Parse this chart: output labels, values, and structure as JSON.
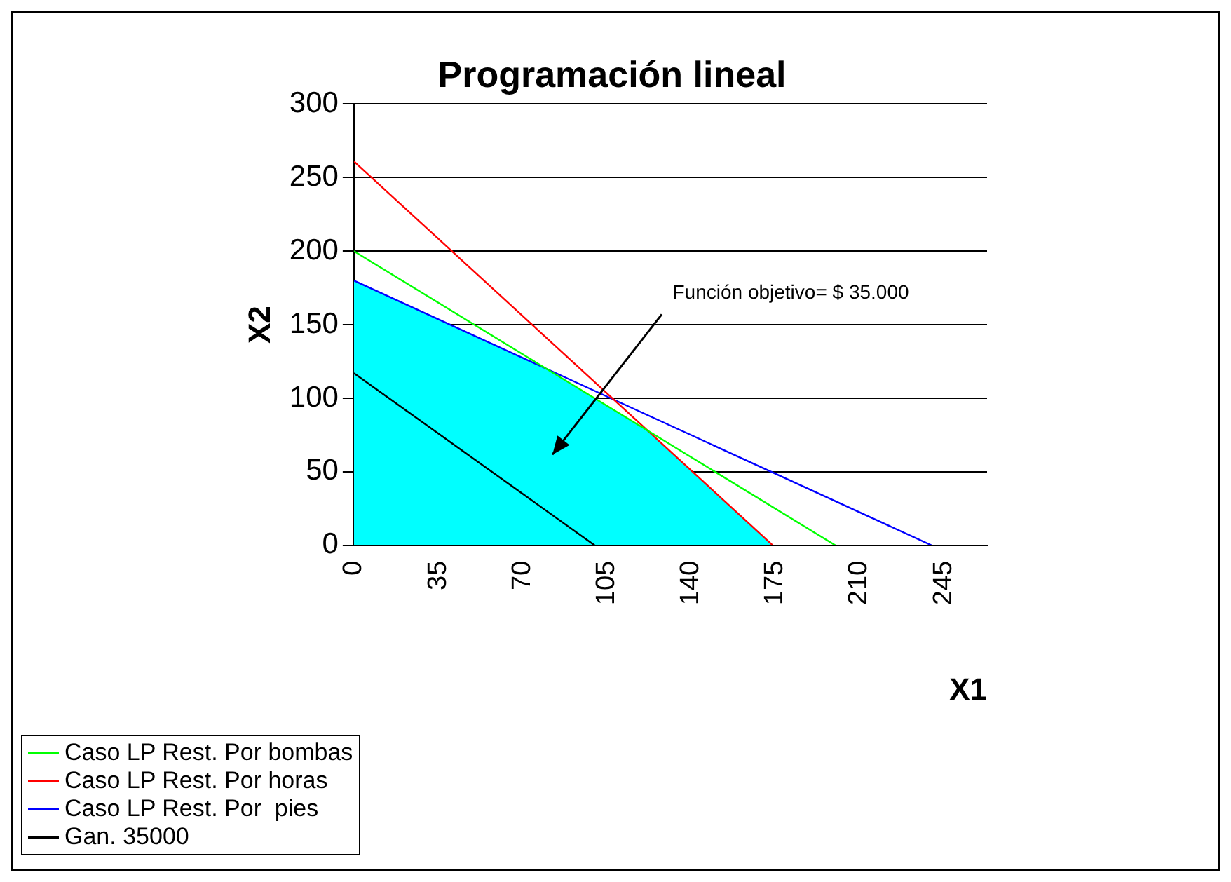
{
  "chart_data": {
    "type": "line",
    "title": "Programación lineal",
    "xlabel": "X1",
    "ylabel": "X2",
    "xlim": [
      0,
      263
    ],
    "xticks": [
      0,
      35,
      70,
      105,
      140,
      175,
      210,
      245
    ],
    "ylim": [
      0,
      300
    ],
    "yticks": [
      0,
      50,
      100,
      150,
      200,
      250,
      300
    ],
    "grid": "y",
    "legend": "bottom left",
    "series": [
      {
        "type": "area",
        "color": "#00ffff",
        "x": [
          0,
          0,
          80,
          122,
          174
        ],
        "values": [
          0,
          180,
          120,
          78,
          0
        ]
      },
      {
        "name": "Caso LP Rest. Por bombas",
        "color": "#00ff00",
        "x": [
          0,
          200
        ],
        "values": [
          200,
          0
        ]
      },
      {
        "name": "Caso LP Rest. Por horas",
        "color": "#ff0000",
        "x": [
          0,
          174
        ],
        "values": [
          261,
          0
        ]
      },
      {
        "name": "Caso LP Rest. Por  pies",
        "color": "#0000ff",
        "x": [
          0,
          240
        ],
        "values": [
          180,
          0
        ]
      },
      {
        "name": "Gan. 35000",
        "color": "#000000",
        "x": [
          0,
          100
        ],
        "values": [
          117,
          0
        ]
      }
    ],
    "annotations": [
      "Función objetivo= $ 35.000"
    ]
  }
}
